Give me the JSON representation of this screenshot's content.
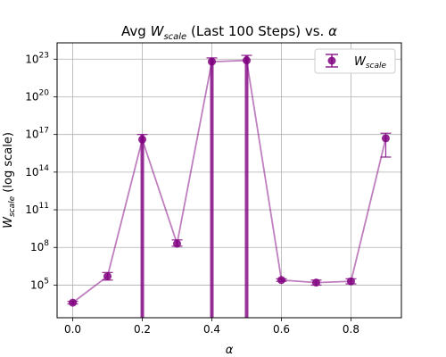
{
  "chart_data": {
    "type": "scatter",
    "title_prefix": "Avg ",
    "title_var": "W",
    "title_sub": "scale",
    "title_suffix": " (Last 100 Steps) vs. ",
    "title_alpha": "α",
    "xlabel": "α",
    "ylabel_var": "W",
    "ylabel_sub": "scale",
    "ylabel_suffix": " (log scale)",
    "x_ticks": [
      "0.0",
      "0.2",
      "0.4",
      "0.6",
      "0.8"
    ],
    "y_ticks": [
      {
        "base": "10",
        "exp": "5",
        "value_log10": 5
      },
      {
        "base": "10",
        "exp": "8",
        "value_log10": 8
      },
      {
        "base": "10",
        "exp": "11",
        "value_log10": 11
      },
      {
        "base": "10",
        "exp": "14",
        "value_log10": 14
      },
      {
        "base": "10",
        "exp": "17",
        "value_log10": 17
      },
      {
        "base": "10",
        "exp": "20",
        "value_log10": 20
      },
      {
        "base": "10",
        "exp": "23",
        "value_log10": 23
      }
    ],
    "xlim": [
      -0.045,
      0.945
    ],
    "ylim_log10": [
      2.4,
      24.3
    ],
    "y_scale": "log",
    "grid": true,
    "legend": {
      "position": "top-right",
      "var": "W",
      "sub": "scale"
    },
    "series": [
      {
        "name": "W_scale",
        "color": "#800080",
        "points": [
          {
            "x": 0.0,
            "y_log10": 3.6,
            "err_low_log10": 3.5,
            "err_high_log10": 3.7
          },
          {
            "x": 0.1,
            "y_log10": 5.7,
            "err_low_log10": 5.4,
            "err_high_log10": 6.0
          },
          {
            "x": 0.2,
            "y_log10": 16.6,
            "err_low_log10": 2.4,
            "err_high_log10": 17.0
          },
          {
            "x": 0.3,
            "y_log10": 8.3,
            "err_low_log10": 8.1,
            "err_high_log10": 8.6
          },
          {
            "x": 0.4,
            "y_log10": 22.8,
            "err_low_log10": 2.4,
            "err_high_log10": 23.1
          },
          {
            "x": 0.5,
            "y_log10": 22.9,
            "err_low_log10": 2.4,
            "err_high_log10": 23.3
          },
          {
            "x": 0.6,
            "y_log10": 5.4,
            "err_low_log10": 5.3,
            "err_high_log10": 5.5
          },
          {
            "x": 0.7,
            "y_log10": 5.2,
            "err_low_log10": 5.0,
            "err_high_log10": 5.4
          },
          {
            "x": 0.8,
            "y_log10": 5.3,
            "err_low_log10": 5.1,
            "err_high_log10": 5.5
          },
          {
            "x": 0.9,
            "y_log10": 16.7,
            "err_low_log10": 15.2,
            "err_high_log10": 17.1
          }
        ]
      }
    ]
  }
}
